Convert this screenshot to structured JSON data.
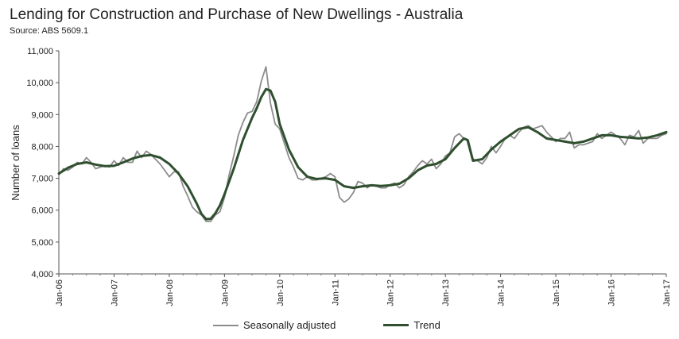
{
  "title": "Lending for Construction and Purchase of New Dwellings - Australia",
  "source": "Source: ABS 5609.1",
  "chart_data": {
    "type": "line",
    "ylabel": "Number of loans",
    "ylim": [
      4000,
      11000
    ],
    "yticks": [
      "4,000",
      "5,000",
      "6,000",
      "7,000",
      "8,000",
      "9,000",
      "10,000",
      "11,000"
    ],
    "xlim": [
      2006.0,
      2017.0
    ],
    "xticks": [
      "Jan-06",
      "Jan-07",
      "Jan-08",
      "Jan-09",
      "Jan-10",
      "Jan-11",
      "Jan-12",
      "Jan-13",
      "Jan-14",
      "Jan-15",
      "Jan-16",
      "Jan-17"
    ],
    "legend": "bottom",
    "series": [
      {
        "name": "Seasonally adjusted",
        "color": "#8c8c8c",
        "x": [
          2006.0,
          2006.083,
          2006.167,
          2006.25,
          2006.333,
          2006.417,
          2006.5,
          2006.583,
          2006.667,
          2006.75,
          2006.833,
          2006.917,
          2007.0,
          2007.083,
          2007.167,
          2007.25,
          2007.333,
          2007.417,
          2007.5,
          2007.583,
          2007.667,
          2007.75,
          2007.833,
          2007.917,
          2008.0,
          2008.083,
          2008.167,
          2008.25,
          2008.333,
          2008.417,
          2008.5,
          2008.583,
          2008.667,
          2008.75,
          2008.833,
          2008.917,
          2009.0,
          2009.083,
          2009.167,
          2009.25,
          2009.333,
          2009.417,
          2009.5,
          2009.583,
          2009.667,
          2009.75,
          2009.833,
          2009.917,
          2010.0,
          2010.083,
          2010.167,
          2010.25,
          2010.333,
          2010.417,
          2010.5,
          2010.583,
          2010.667,
          2010.75,
          2010.833,
          2010.917,
          2011.0,
          2011.083,
          2011.167,
          2011.25,
          2011.333,
          2011.417,
          2011.5,
          2011.583,
          2011.667,
          2011.75,
          2011.833,
          2011.917,
          2012.0,
          2012.083,
          2012.167,
          2012.25,
          2012.333,
          2012.417,
          2012.5,
          2012.583,
          2012.667,
          2012.75,
          2012.833,
          2012.917,
          2013.0,
          2013.083,
          2013.167,
          2013.25,
          2013.333,
          2013.417,
          2013.5,
          2013.583,
          2013.667,
          2013.75,
          2013.833,
          2013.917,
          2014.0,
          2014.083,
          2014.167,
          2014.25,
          2014.333,
          2014.417,
          2014.5,
          2014.583,
          2014.667,
          2014.75,
          2014.833,
          2014.917,
          2015.0,
          2015.083,
          2015.167,
          2015.25,
          2015.333,
          2015.417,
          2015.5,
          2015.583,
          2015.667,
          2015.75,
          2015.833,
          2015.917,
          2016.0,
          2016.083,
          2016.167,
          2016.25,
          2016.333,
          2016.417,
          2016.5,
          2016.583,
          2016.667,
          2016.75,
          2016.833,
          2016.917,
          2017.0
        ],
        "y": [
          7100,
          7300,
          7250,
          7350,
          7500,
          7450,
          7650,
          7500,
          7300,
          7350,
          7400,
          7350,
          7550,
          7400,
          7650,
          7500,
          7500,
          7850,
          7650,
          7850,
          7750,
          7600,
          7450,
          7250,
          7050,
          7200,
          7200,
          6750,
          6450,
          6100,
          5950,
          5850,
          5650,
          5650,
          5850,
          5950,
          6400,
          7100,
          7700,
          8350,
          8750,
          9050,
          9100,
          9400,
          10050,
          10500,
          9350,
          8700,
          8550,
          8100,
          7650,
          7350,
          7000,
          6950,
          7050,
          6950,
          6950,
          7000,
          7050,
          7150,
          7050,
          6400,
          6250,
          6350,
          6550,
          6900,
          6850,
          6700,
          6800,
          6750,
          6700,
          6700,
          6800,
          6850,
          6700,
          6800,
          7050,
          7200,
          7400,
          7550,
          7450,
          7600,
          7300,
          7450,
          7700,
          7800,
          8300,
          8400,
          8250,
          8200,
          7600,
          7550,
          7450,
          7650,
          8000,
          7800,
          8000,
          8250,
          8350,
          8250,
          8450,
          8600,
          8650,
          8550,
          8600,
          8650,
          8450,
          8300,
          8150,
          8250,
          8250,
          8450,
          7950,
          8050,
          8050,
          8100,
          8150,
          8400,
          8250,
          8350,
          8450,
          8350,
          8250,
          8050,
          8350,
          8300,
          8500,
          8100,
          8250,
          8250,
          8250,
          8350,
          8400
        ]
      },
      {
        "name": "Trend",
        "color": "#2f4f2f",
        "x": [
          2006.0,
          2006.167,
          2006.333,
          2006.5,
          2006.667,
          2006.833,
          2007.0,
          2007.167,
          2007.333,
          2007.5,
          2007.667,
          2007.833,
          2008.0,
          2008.167,
          2008.333,
          2008.5,
          2008.583,
          2008.667,
          2008.75,
          2008.833,
          2008.917,
          2009.0,
          2009.167,
          2009.333,
          2009.5,
          2009.583,
          2009.667,
          2009.75,
          2009.833,
          2009.917,
          2010.0,
          2010.167,
          2010.333,
          2010.5,
          2010.667,
          2010.833,
          2011.0,
          2011.167,
          2011.333,
          2011.5,
          2011.667,
          2011.833,
          2012.0,
          2012.167,
          2012.333,
          2012.5,
          2012.667,
          2012.833,
          2013.0,
          2013.167,
          2013.333,
          2013.4,
          2013.5,
          2013.667,
          2013.833,
          2014.0,
          2014.167,
          2014.333,
          2014.5,
          2014.667,
          2014.833,
          2015.0,
          2015.167,
          2015.333,
          2015.5,
          2015.667,
          2015.833,
          2016.0,
          2016.167,
          2016.333,
          2016.5,
          2016.667,
          2016.833,
          2017.0
        ],
        "y": [
          7150,
          7330,
          7450,
          7500,
          7430,
          7380,
          7390,
          7500,
          7620,
          7700,
          7730,
          7650,
          7450,
          7150,
          6750,
          6200,
          5880,
          5720,
          5730,
          5900,
          6150,
          6500,
          7300,
          8200,
          8900,
          9200,
          9550,
          9800,
          9750,
          9400,
          8700,
          7900,
          7350,
          7050,
          6980,
          7000,
          6950,
          6750,
          6700,
          6750,
          6780,
          6760,
          6780,
          6830,
          7000,
          7250,
          7400,
          7450,
          7600,
          7950,
          8250,
          8200,
          7550,
          7600,
          7900,
          8150,
          8350,
          8550,
          8600,
          8450,
          8250,
          8200,
          8150,
          8100,
          8150,
          8250,
          8350,
          8350,
          8300,
          8280,
          8250,
          8280,
          8350,
          8450
        ]
      }
    ]
  }
}
